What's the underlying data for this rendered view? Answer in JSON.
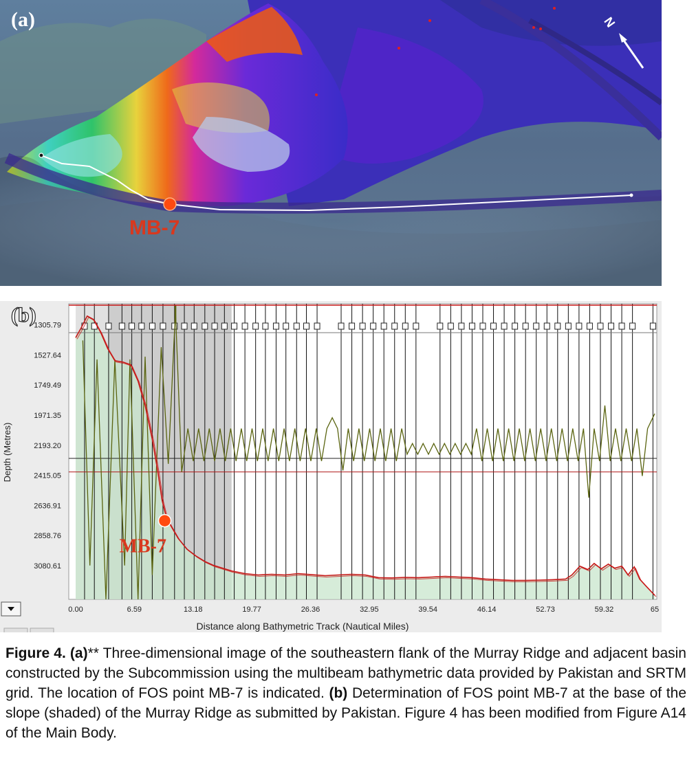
{
  "panel_a": {
    "label": "(a)",
    "point_label": "MB-7",
    "north_label": "N",
    "colors": {
      "point": "#ff4a10",
      "label": "#d9381e",
      "track": "#ffffff"
    }
  },
  "panel_b": {
    "label": "(b)",
    "point_label": "MB-7",
    "dropdown_icon": "chevron-down-icon"
  },
  "caption": {
    "fig_label": "Figure 4.",
    "part_a_label": "(a)",
    "part_a_marker": "**",
    "part_a_text": " Three-dimensional image of the southeastern flank of the Murray Ridge and adjacent basin constructed by the Subcommission using the multibeam bathymetric data provided by Pakistan and SRTM grid. The location of FOS point MB-7 is indicated. ",
    "part_b_label": "(b)",
    "part_b_text": " Determination of FOS point MB-7 at the base of the slope (shaded) of the Murray Ridge as submitted by Pakistan. Figure 4 has been modified from Figure A14 of the Main Body."
  },
  "chart_data": {
    "type": "line",
    "xlabel": "Distance along Bathymetric Track (Nautical Miles)",
    "ylabel": "Depth (Metres)",
    "x_ticks": [
      "0.00",
      "6.59",
      "13.18",
      "19.77",
      "26.36",
      "32.95",
      "39.54",
      "46.14",
      "52.73",
      "59.32",
      "65"
    ],
    "y_ticks": [
      "1305.79",
      "1527.64",
      "1749.49",
      "1971.35",
      "2193.20",
      "2415.05",
      "2636.91",
      "2858.76",
      "3080.61"
    ],
    "xlim": [
      0,
      65
    ],
    "ylim": [
      1150,
      3330
    ],
    "shaded_region_x": [
      0,
      17.5
    ],
    "dark_shaded_region_x": [
      3.7,
      17.5
    ],
    "foot_of_slope": {
      "label": "MB-7",
      "x": 10.0,
      "depth": 2750
    },
    "reference_depths": [
      2290,
      2390
    ],
    "colors": {
      "profile": "#c81818",
      "derivative": "#5a6410",
      "fill": "#c8e6cc",
      "shade": "#c8c8c8",
      "point": "#ff4a10"
    },
    "series": [
      {
        "name": "",
        "x": [
          0,
          0.6,
          1.3,
          2.0,
          2.8,
          3.6,
          4.4,
          5.3,
          6.2,
          7.0,
          7.8,
          8.6,
          9.2,
          9.7,
          10.2,
          10.8,
          11.5,
          12.5,
          13.5,
          14.5,
          15.5,
          16.5,
          17.5,
          19,
          20.5,
          22,
          23.5,
          25,
          26.5,
          28,
          29.5,
          31,
          32.5,
          34,
          35.5,
          37,
          38.5,
          40,
          41.5,
          43,
          44.5,
          46,
          47.5,
          49,
          50.5,
          52,
          53.5,
          55,
          55.7,
          56.6,
          57.5,
          58.2,
          59,
          59.8,
          60.5,
          61.3,
          62,
          62.7,
          63.3,
          64,
          65
        ],
        "values": [
          1400,
          1330,
          1240,
          1265,
          1360,
          1480,
          1570,
          1580,
          1600,
          1720,
          1900,
          2150,
          2380,
          2600,
          2730,
          2800,
          2880,
          2960,
          3010,
          3050,
          3080,
          3100,
          3120,
          3140,
          3150,
          3145,
          3150,
          3140,
          3148,
          3155,
          3150,
          3145,
          3150,
          3170,
          3172,
          3168,
          3170,
          3165,
          3160,
          3165,
          3170,
          3180,
          3185,
          3190,
          3190,
          3188,
          3185,
          3180,
          3150,
          3085,
          3110,
          3065,
          3105,
          3070,
          3100,
          3085,
          3150,
          3090,
          3180,
          3230,
          3300
        ]
      }
    ]
  }
}
